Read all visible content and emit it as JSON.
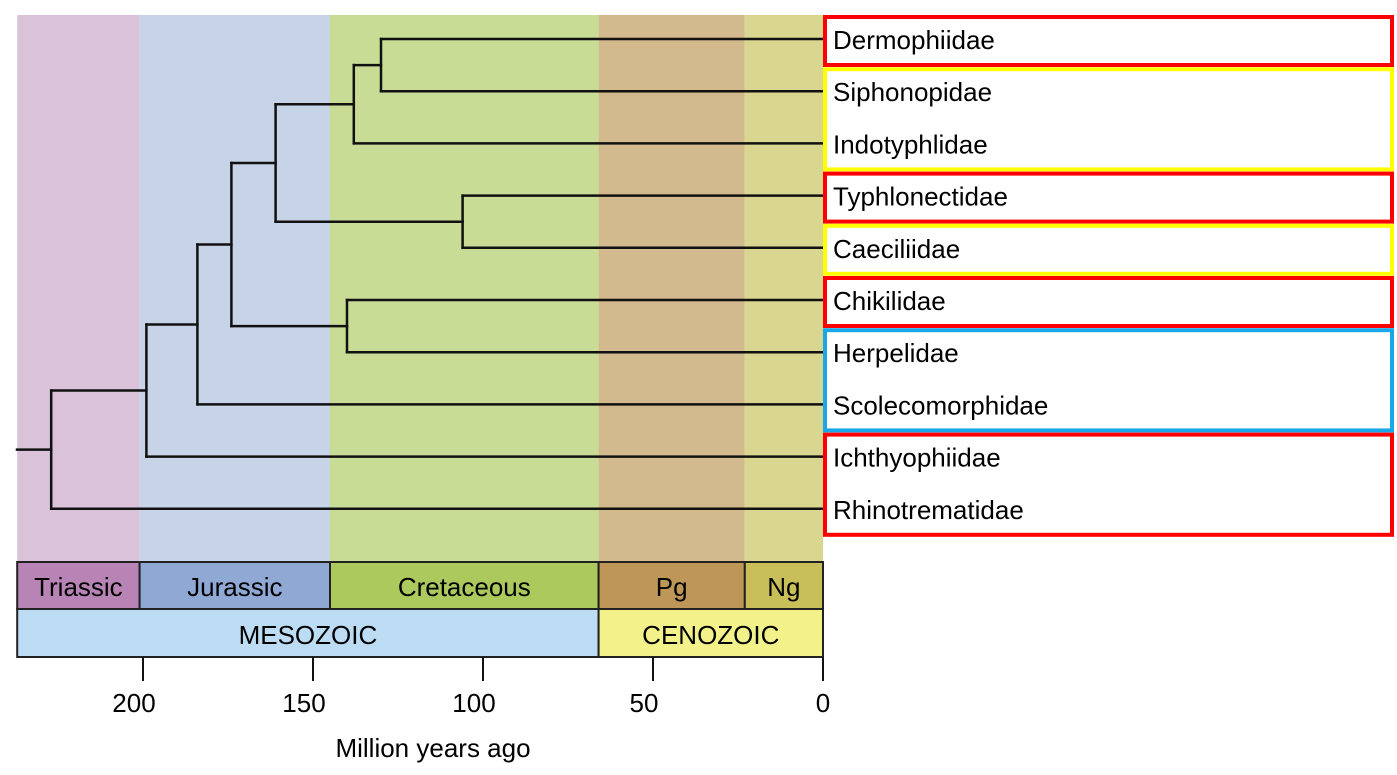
{
  "axis": {
    "title": "Million years ago",
    "ticks": [
      200,
      150,
      100,
      50,
      0
    ],
    "range": [
      237,
      0
    ]
  },
  "periods": [
    {
      "name": "Triassic",
      "start": 237,
      "end": 201,
      "bg": "#dac2d9",
      "bar": "#b784b5"
    },
    {
      "name": "Jurassic",
      "start": 201,
      "end": 145,
      "bg": "#c7d3e6",
      "bar": "#8fa8d4"
    },
    {
      "name": "Cretaceous",
      "start": 145,
      "end": 66,
      "bg": "#c9dc95",
      "bar": "#acc95d"
    },
    {
      "name": "Pg",
      "start": 66,
      "end": 23,
      "bg": "#d3b98e",
      "bar": "#be9758"
    },
    {
      "name": "Ng",
      "start": 23,
      "end": 0,
      "bg": "#d9d68f",
      "bar": "#c8bf59"
    }
  ],
  "eras": [
    {
      "name": "MESOZOIC",
      "start": 237,
      "end": 66,
      "color": "#bcdcf4"
    },
    {
      "name": "CENOZOIC",
      "start": 66,
      "end": 0,
      "color": "#f3f28a"
    }
  ],
  "taxa": [
    "Dermophiidae",
    "Siphonopidae",
    "Indotyphlidae",
    "Typhlonectidae",
    "Caeciliidae",
    "Chikilidae",
    "Herpelidae",
    "Scolecomorphidae",
    "Ichthyophiidae",
    "Rhinotrematidae"
  ],
  "groups": [
    {
      "from": 0,
      "to": 0,
      "color": "#ff0000"
    },
    {
      "from": 1,
      "to": 2,
      "color": "#ffff00"
    },
    {
      "from": 3,
      "to": 3,
      "color": "#ff0000"
    },
    {
      "from": 4,
      "to": 4,
      "color": "#ffff00"
    },
    {
      "from": 5,
      "to": 5,
      "color": "#ff0000"
    },
    {
      "from": 6,
      "to": 7,
      "color": "#1aa7e8"
    },
    {
      "from": 8,
      "to": 9,
      "color": "#ff0000"
    }
  ],
  "tree": {
    "age": 227,
    "children": [
      {
        "age": 199,
        "children": [
          {
            "age": 184,
            "children": [
              {
                "age": 174,
                "children": [
                  {
                    "age": 161,
                    "children": [
                      {
                        "age": 138,
                        "children": [
                          {
                            "age": 130,
                            "children": [
                              {
                                "tip": 0
                              },
                              {
                                "tip": 1
                              }
                            ]
                          },
                          {
                            "tip": 2
                          }
                        ]
                      },
                      {
                        "age": 106,
                        "children": [
                          {
                            "tip": 3
                          },
                          {
                            "tip": 4
                          }
                        ]
                      }
                    ]
                  },
                  {
                    "age": 140,
                    "children": [
                      {
                        "tip": 5
                      },
                      {
                        "tip": 6
                      }
                    ]
                  }
                ]
              },
              {
                "tip": 7
              }
            ]
          },
          {
            "tip": 8
          }
        ]
      },
      {
        "tip": 9
      }
    ]
  }
}
